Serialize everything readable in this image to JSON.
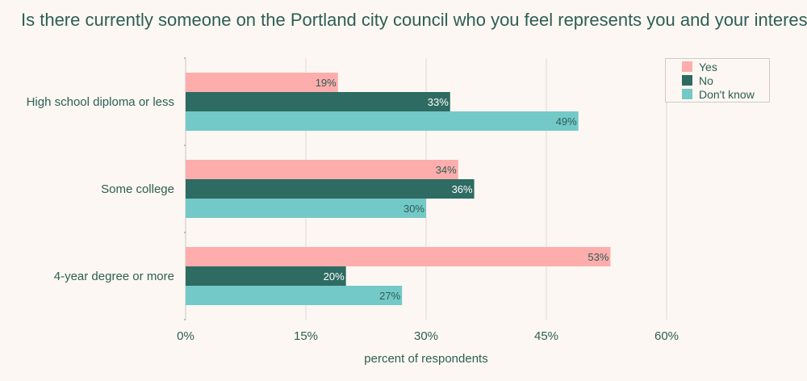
{
  "chart_data": {
    "type": "bar",
    "orientation": "horizontal",
    "title": "Is there currently someone on the Portland city council who you feel represents you and your interests?",
    "xlabel": "percent of respondents",
    "ylabel": "",
    "xlim": [
      0,
      60
    ],
    "xticks": [
      0,
      15,
      30,
      45,
      60
    ],
    "xtick_labels": [
      "0%",
      "15%",
      "30%",
      "45%",
      "60%"
    ],
    "grid": "vertical",
    "legend_position": "top-right",
    "categories": [
      "High school diploma or less",
      "Some college",
      "4-year degree or more"
    ],
    "series": [
      {
        "name": "Yes",
        "color": "#fcadac",
        "label_color": "#2e5e56",
        "values": [
          19,
          34,
          53
        ],
        "labels": [
          "19%",
          "34%",
          "53%"
        ]
      },
      {
        "name": "No",
        "color": "#2e6b62",
        "label_color": "#ffffff",
        "values": [
          33,
          36,
          20
        ],
        "labels": [
          "33%",
          "36%",
          "20%"
        ]
      },
      {
        "name": "Don't know",
        "color": "#73c9c7",
        "label_color": "#2e5e56",
        "values": [
          49,
          30,
          27
        ],
        "labels": [
          "49%",
          "30%",
          "27%"
        ]
      }
    ]
  }
}
